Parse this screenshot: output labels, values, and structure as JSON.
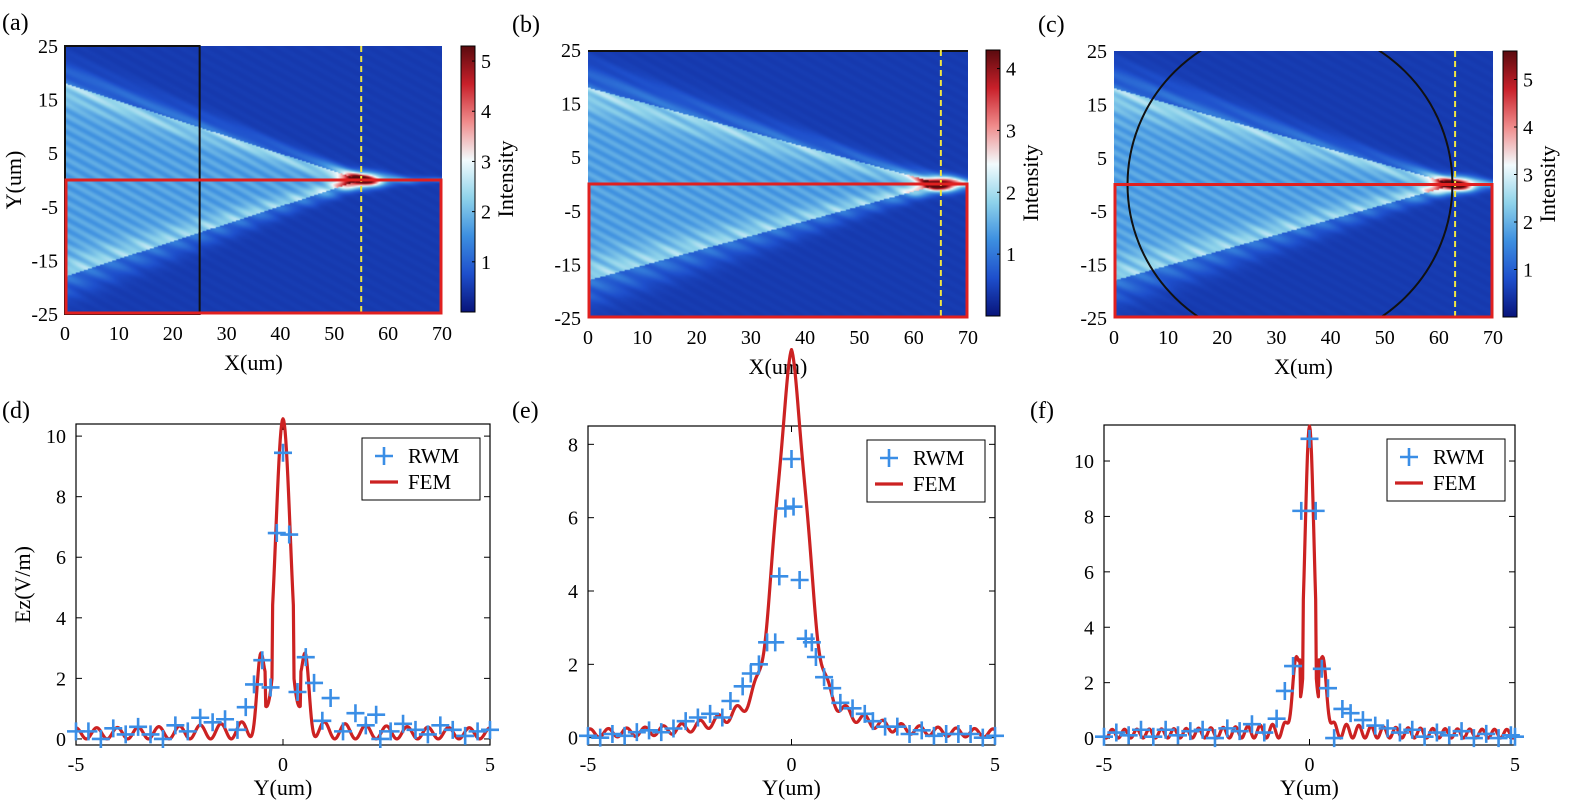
{
  "figure": {
    "colors": {
      "rwm": "#3a8ee6",
      "fem": "#cc2222",
      "highlight": "#e02020",
      "focus_line": "#f2e640",
      "lens": "#111111",
      "cmap": [
        "#08147a",
        "#1e4fcc",
        "#3d8fe0",
        "#8fd3ea",
        "#f2fbfd",
        "#f08c8c",
        "#c8202a",
        "#5a0a0e"
      ]
    }
  },
  "chart_data": [
    {
      "id": "a",
      "panel_label": "(a)",
      "type": "heatmap",
      "xlabel": "X(um)",
      "ylabel": "Y(um)",
      "xlim": [
        0,
        70
      ],
      "ylim": [
        -25,
        25
      ],
      "xticks": [
        "0",
        "10",
        "20",
        "30",
        "40",
        "50",
        "60",
        "70"
      ],
      "yticks": [
        "25",
        "15",
        "5",
        "-5",
        "-15",
        "-25"
      ],
      "colorbar": {
        "label": "Intensity",
        "range": [
          0,
          5.3
        ],
        "ticks": [
          "1",
          "2",
          "3",
          "4",
          "5"
        ]
      },
      "lens": "rectangle",
      "lens_x_range": [
        0,
        25
      ],
      "focus_x": 55,
      "highlight_y_range": [
        -25,
        0
      ]
    },
    {
      "id": "b",
      "panel_label": "(b)",
      "type": "heatmap",
      "xlabel": "X(um)",
      "ylabel": "",
      "xlim": [
        0,
        70
      ],
      "ylim": [
        -25,
        25
      ],
      "xticks": [
        "0",
        "10",
        "20",
        "30",
        "40",
        "50",
        "60",
        "70"
      ],
      "yticks": [
        "25",
        "15",
        "5",
        "-5",
        "-15",
        "-25"
      ],
      "colorbar": {
        "label": "Intensity",
        "range": [
          0,
          4.3
        ],
        "ticks": [
          "1",
          "2",
          "3",
          "4"
        ]
      },
      "lens": "rectangle-full",
      "lens_x_range": [
        0,
        70
      ],
      "focus_x": 65,
      "highlight_y_range": [
        -25,
        0
      ]
    },
    {
      "id": "c",
      "panel_label": "(c)",
      "type": "heatmap",
      "xlabel": "X(um)",
      "ylabel": "",
      "xlim": [
        0,
        70
      ],
      "ylim": [
        -25,
        25
      ],
      "xticks": [
        "0",
        "10",
        "20",
        "30",
        "40",
        "50",
        "60",
        "70"
      ],
      "yticks": [
        "25",
        "15",
        "5",
        "-5",
        "-15",
        "-25"
      ],
      "colorbar": {
        "label": "Intensity",
        "range": [
          0,
          5.6
        ],
        "ticks": [
          "1",
          "2",
          "3",
          "4",
          "5"
        ]
      },
      "lens": "circle",
      "lens_center": [
        32.5,
        0
      ],
      "lens_radius": 30,
      "focus_x": 63,
      "highlight_y_range": [
        -25,
        0
      ]
    },
    {
      "id": "d",
      "panel_label": "(d)",
      "type": "line",
      "xlabel": "Y(um)",
      "ylabel": "Ez(V/m)",
      "xlim": [
        -5,
        5
      ],
      "ylim": [
        -0.2,
        10.4
      ],
      "xticks": [
        -5,
        0,
        5
      ],
      "yticks": [
        0,
        2,
        4,
        6,
        8,
        10
      ],
      "peak": 9.8,
      "width": 0.28,
      "ripple": 0.35,
      "ripple_period": 0.5,
      "side": 2.0,
      "side_pos": 0.55,
      "legend": [
        "RWM",
        "FEM"
      ],
      "series": [
        {
          "name": "RWM",
          "style": "markers",
          "points": [
            [
              -5.0,
              0.25
            ],
            [
              -4.7,
              0.25
            ],
            [
              -4.4,
              0.0
            ],
            [
              -4.1,
              0.35
            ],
            [
              -3.8,
              0.15
            ],
            [
              -3.5,
              0.4
            ],
            [
              -3.2,
              0.15
            ],
            [
              -2.9,
              0.0
            ],
            [
              -2.6,
              0.45
            ],
            [
              -2.3,
              0.25
            ],
            [
              -2.0,
              0.7
            ],
            [
              -1.7,
              0.55
            ],
            [
              -1.4,
              0.65
            ],
            [
              -1.1,
              0.3
            ],
            [
              -0.9,
              1.05
            ],
            [
              -0.7,
              1.8
            ],
            [
              -0.5,
              2.6
            ],
            [
              -0.3,
              1.7
            ],
            [
              -0.15,
              6.8
            ],
            [
              0.0,
              9.45
            ],
            [
              0.15,
              6.75
            ],
            [
              0.35,
              1.55
            ],
            [
              0.55,
              2.7
            ],
            [
              0.75,
              1.85
            ],
            [
              0.95,
              0.6
            ],
            [
              1.15,
              1.35
            ],
            [
              1.45,
              0.25
            ],
            [
              1.75,
              0.85
            ],
            [
              2.0,
              0.45
            ],
            [
              2.25,
              0.8
            ],
            [
              2.35,
              0.0
            ],
            [
              2.6,
              0.25
            ],
            [
              2.9,
              0.5
            ],
            [
              3.2,
              0.3
            ],
            [
              3.5,
              0.15
            ],
            [
              3.8,
              0.45
            ],
            [
              4.1,
              0.3
            ],
            [
              4.4,
              0.1
            ],
            [
              4.7,
              0.25
            ],
            [
              5.0,
              0.3
            ]
          ]
        },
        {
          "name": "FEM",
          "style": "line"
        }
      ]
    },
    {
      "id": "e",
      "panel_label": "(e)",
      "type": "line",
      "xlabel": "Y(um)",
      "ylabel": "",
      "xlim": [
        -5,
        5
      ],
      "ylim": [
        -0.2,
        8.5
      ],
      "xticks": [
        -5,
        0,
        5
      ],
      "yticks": [
        0,
        2,
        4,
        6,
        8
      ],
      "peak": 7.7,
      "width": 0.5,
      "ripple": 0.22,
      "ripple_period": 0.45,
      "side": 0,
      "side_pos": 0,
      "legend": [
        "RWM",
        "FEM"
      ],
      "series": [
        {
          "name": "RWM",
          "style": "markers",
          "points": [
            [
              -5.0,
              0.05
            ],
            [
              -4.7,
              0.0
            ],
            [
              -4.4,
              0.1
            ],
            [
              -4.1,
              0.05
            ],
            [
              -3.8,
              0.15
            ],
            [
              -3.5,
              0.2
            ],
            [
              -3.2,
              0.15
            ],
            [
              -2.9,
              0.25
            ],
            [
              -2.6,
              0.45
            ],
            [
              -2.3,
              0.55
            ],
            [
              -2.0,
              0.65
            ],
            [
              -1.7,
              0.55
            ],
            [
              -1.5,
              1.0
            ],
            [
              -1.2,
              1.4
            ],
            [
              -1.0,
              1.75
            ],
            [
              -0.8,
              2.0
            ],
            [
              -0.6,
              2.6
            ],
            [
              -0.4,
              2.6
            ],
            [
              -0.3,
              4.4
            ],
            [
              -0.15,
              6.25
            ],
            [
              0.0,
              7.6
            ],
            [
              0.05,
              6.3
            ],
            [
              0.2,
              4.3
            ],
            [
              0.35,
              2.7
            ],
            [
              0.5,
              2.6
            ],
            [
              0.6,
              2.2
            ],
            [
              0.8,
              1.65
            ],
            [
              1.0,
              1.35
            ],
            [
              1.2,
              0.95
            ],
            [
              1.5,
              0.8
            ],
            [
              1.8,
              0.65
            ],
            [
              2.0,
              0.45
            ],
            [
              2.3,
              0.3
            ],
            [
              2.6,
              0.3
            ],
            [
              2.9,
              0.1
            ],
            [
              3.2,
              0.2
            ],
            [
              3.5,
              0.05
            ],
            [
              3.8,
              0.1
            ],
            [
              4.1,
              0.1
            ],
            [
              4.4,
              0.1
            ],
            [
              4.7,
              0.0
            ],
            [
              5.0,
              0.05
            ]
          ]
        },
        {
          "name": "FEM",
          "style": "line"
        }
      ]
    },
    {
      "id": "f",
      "panel_label": "(f)",
      "type": "line",
      "xlabel": "Y(um)",
      "ylabel": "",
      "xlim": [
        -5,
        5
      ],
      "ylim": [
        -0.25,
        11.3
      ],
      "xticks": [
        -5,
        0,
        5
      ],
      "yticks": [
        0,
        2,
        4,
        6,
        8,
        10
      ],
      "peak": 10.6,
      "width": 0.17,
      "ripple": 0.3,
      "ripple_period": 0.3,
      "side": 2.2,
      "side_pos": 0.35,
      "legend": [
        "RWM",
        "FEM"
      ],
      "series": [
        {
          "name": "RWM",
          "style": "markers",
          "points": [
            [
              -5.0,
              0.05
            ],
            [
              -4.7,
              0.2
            ],
            [
              -4.4,
              0.1
            ],
            [
              -4.1,
              0.3
            ],
            [
              -3.8,
              0.05
            ],
            [
              -3.5,
              0.3
            ],
            [
              -3.2,
              0.1
            ],
            [
              -2.9,
              0.25
            ],
            [
              -2.6,
              0.3
            ],
            [
              -2.3,
              0.0
            ],
            [
              -2.0,
              0.35
            ],
            [
              -1.7,
              0.25
            ],
            [
              -1.4,
              0.5
            ],
            [
              -1.1,
              0.2
            ],
            [
              -0.8,
              0.7
            ],
            [
              -0.6,
              1.7
            ],
            [
              -0.4,
              2.6
            ],
            [
              -0.2,
              8.2
            ],
            [
              0.0,
              10.8
            ],
            [
              0.15,
              8.2
            ],
            [
              0.3,
              2.5
            ],
            [
              0.45,
              1.8
            ],
            [
              0.6,
              0.0
            ],
            [
              0.8,
              1.05
            ],
            [
              1.0,
              0.9
            ],
            [
              1.3,
              0.65
            ],
            [
              1.6,
              0.45
            ],
            [
              1.9,
              0.35
            ],
            [
              2.2,
              0.2
            ],
            [
              2.5,
              0.3
            ],
            [
              2.8,
              0.05
            ],
            [
              3.1,
              0.2
            ],
            [
              3.4,
              0.1
            ],
            [
              3.7,
              0.25
            ],
            [
              4.0,
              0.0
            ],
            [
              4.3,
              0.15
            ],
            [
              4.6,
              0.0
            ],
            [
              4.9,
              0.1
            ],
            [
              5.0,
              0.05
            ]
          ]
        },
        {
          "name": "FEM",
          "style": "line"
        }
      ]
    }
  ]
}
